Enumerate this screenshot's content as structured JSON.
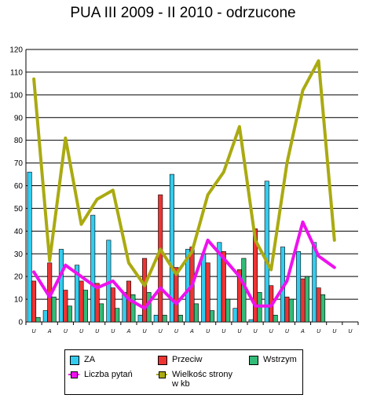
{
  "chart_data": {
    "type": "bar",
    "title": "PUA III 2009 - II 2010 - odrzucone",
    "categories": [
      "U",
      "A",
      "U",
      "U",
      "U",
      "U",
      "A",
      "U",
      "U",
      "U",
      "A",
      "U",
      "U",
      "U",
      "U",
      "U",
      "U",
      "A",
      "U",
      "U",
      "U"
    ],
    "ylim": [
      0,
      120
    ],
    "yticks": [
      0,
      10,
      20,
      30,
      40,
      50,
      60,
      70,
      80,
      90,
      100,
      110,
      120
    ],
    "grid": true,
    "legend_position": "bottom",
    "series": [
      {
        "name": "ZA",
        "type": "bar",
        "color": "#33ccee",
        "values": [
          66,
          5,
          32,
          25,
          47,
          36,
          13,
          3,
          3,
          65,
          32,
          30,
          35,
          6,
          1,
          62,
          33,
          31,
          35,
          0,
          0
        ]
      },
      {
        "name": "Przeciw",
        "type": "bar",
        "color": "#ee3333",
        "values": [
          18,
          26,
          14,
          18,
          17,
          15,
          18,
          28,
          56,
          24,
          33,
          26,
          31,
          23,
          41,
          16,
          11,
          19,
          15,
          0,
          0
        ]
      },
      {
        "name": "Wstrzym",
        "type": "bar",
        "color": "#33bb77",
        "values": [
          2,
          11,
          7,
          14,
          8,
          6,
          12,
          13,
          3,
          3,
          8,
          5,
          10,
          28,
          13,
          3,
          10,
          20,
          12,
          0,
          0
        ]
      },
      {
        "name": "Liczba pytań",
        "type": "line",
        "color": "#ee11ee",
        "values": [
          22,
          11,
          25,
          20,
          15,
          18,
          10,
          6,
          15,
          8,
          16,
          36,
          28,
          20,
          7,
          7,
          18,
          44,
          29,
          24,
          null
        ]
      },
      {
        "name": "Wielkośc strony w kb",
        "type": "line",
        "color": "#aaaa11",
        "values": [
          107,
          27,
          81,
          43,
          54,
          58,
          26,
          16,
          32,
          21,
          31,
          56,
          66,
          86,
          36,
          23,
          70,
          102,
          115,
          36,
          null
        ]
      }
    ]
  },
  "legend": {
    "items": [
      {
        "label": "ZA",
        "color": "#33ccee",
        "kind": "box"
      },
      {
        "label": "Przeciw",
        "color": "#ee3333",
        "kind": "box"
      },
      {
        "label": "Wstrzym",
        "color": "#33bb77",
        "kind": "box"
      },
      {
        "label": "Liczba pytań",
        "color": "#ee11ee",
        "kind": "line"
      },
      {
        "label": "Wielkośc strony\nw kb",
        "color": "#aaaa11",
        "kind": "line"
      }
    ]
  }
}
